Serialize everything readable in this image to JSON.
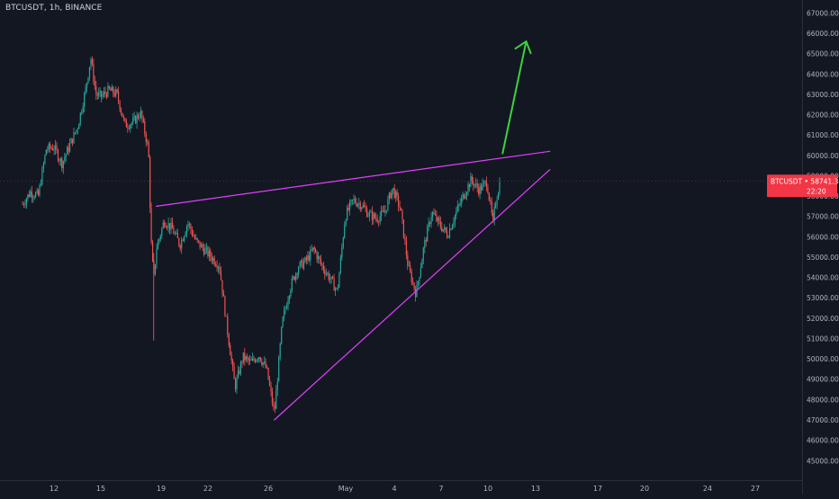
{
  "header": {
    "title": "BTCUSDT, 1h, BINANCE"
  },
  "colors": {
    "background": "#131722",
    "up": "#26a69a",
    "down": "#ef5350",
    "trendline": "#e040fb",
    "arrow": "#3bd43b",
    "price_label": "#f23645",
    "axis_text": "#b2b5be"
  },
  "chart_data": {
    "type": "candlestick",
    "symbol": "BTCUSDT",
    "interval": "1h",
    "exchange": "BINANCE",
    "grid": false,
    "y_axis_position": "right",
    "ylim": [
      45000,
      68000
    ],
    "y_ticks": [
      "45000.00",
      "46000.00",
      "47000.00",
      "48000.00",
      "49000.00",
      "50000.00",
      "51000.00",
      "52000.00",
      "53000.00",
      "54000.00",
      "55000.00",
      "56000.00",
      "57000.00",
      "58000.00",
      "59000.00",
      "60000.00",
      "61000.00",
      "62000.00",
      "63000.00",
      "64000.00",
      "65000.00",
      "66000.00",
      "67000.00"
    ],
    "x_ticks": [
      "12",
      "15",
      "19",
      "22",
      "26",
      "May",
      "4",
      "7",
      "10",
      "13",
      "17",
      "20",
      "24",
      "27"
    ],
    "last_price": {
      "value": "58741.34",
      "label": "BTCUSDT",
      "countdown": "22:20"
    },
    "price_path": [
      [
        "Apr 10 00:00",
        57600
      ],
      [
        "Apr 10 12:00",
        58200
      ],
      [
        "Apr 11 00:00",
        58000
      ],
      [
        "Apr 11 12:00",
        60300
      ],
      [
        "Apr 12 00:00",
        60400
      ],
      [
        "Apr 12 12:00",
        59600
      ],
      [
        "Apr 13 00:00",
        60500
      ],
      [
        "Apr 13 12:00",
        61400
      ],
      [
        "Apr 14 00:00",
        63200
      ],
      [
        "Apr 14 08:00",
        64800
      ],
      [
        "Apr 14 16:00",
        63000
      ],
      [
        "Apr 15 00:00",
        62900
      ],
      [
        "Apr 15 12:00",
        63200
      ],
      [
        "Apr 16 00:00",
        63000
      ],
      [
        "Apr 16 12:00",
        61500
      ],
      [
        "Apr 17 00:00",
        61600
      ],
      [
        "Apr 17 12:00",
        62100
      ],
      [
        "Apr 18 00:00",
        60300
      ],
      [
        "Apr 18 04:00",
        55800
      ],
      [
        "Apr 18 08:00",
        53800
      ],
      [
        "Apr 18 12:00",
        55400
      ],
      [
        "Apr 19 00:00",
        56800
      ],
      [
        "Apr 19 12:00",
        56400
      ],
      [
        "Apr 20 00:00",
        55600
      ],
      [
        "Apr 20 12:00",
        56700
      ],
      [
        "Apr 21 00:00",
        55800
      ],
      [
        "Apr 21 12:00",
        55400
      ],
      [
        "Apr 22 00:00",
        55000
      ],
      [
        "Apr 22 12:00",
        54600
      ],
      [
        "Apr 23 00:00",
        51500
      ],
      [
        "Apr 23 12:00",
        48600
      ],
      [
        "Apr 24 00:00",
        50100
      ],
      [
        "Apr 24 12:00",
        49800
      ],
      [
        "Apr 25 00:00",
        50200
      ],
      [
        "Apr 25 12:00",
        49500
      ],
      [
        "Apr 26 00:00",
        47300
      ],
      [
        "Apr 26 12:00",
        51800
      ],
      [
        "Apr 27 00:00",
        53500
      ],
      [
        "Apr 27 12:00",
        54500
      ],
      [
        "Apr 28 00:00",
        54800
      ],
      [
        "Apr 28 12:00",
        55400
      ],
      [
        "Apr 29 00:00",
        54600
      ],
      [
        "Apr 29 12:00",
        54000
      ],
      [
        "Apr 30 00:00",
        53300
      ],
      [
        "Apr 30 12:00",
        57000
      ],
      [
        "May 1 00:00",
        57800
      ],
      [
        "May 1 12:00",
        57600
      ],
      [
        "May 2 00:00",
        57100
      ],
      [
        "May 2 12:00",
        56900
      ],
      [
        "May 3 00:00",
        57200
      ],
      [
        "May 3 12:00",
        58400
      ],
      [
        "May 4 00:00",
        57400
      ],
      [
        "May 4 12:00",
        54500
      ],
      [
        "May 5 00:00",
        53200
      ],
      [
        "May 5 12:00",
        55500
      ],
      [
        "May 6 00:00",
        57200
      ],
      [
        "May 6 12:00",
        56600
      ],
      [
        "May 7 00:00",
        56100
      ],
      [
        "May 7 12:00",
        57100
      ],
      [
        "May 8 00:00",
        58000
      ],
      [
        "May 8 12:00",
        58800
      ],
      [
        "May 9 00:00",
        58300
      ],
      [
        "May 9 12:00",
        58700
      ],
      [
        "May 9 22:00",
        56500
      ],
      [
        "May 10 00:00",
        57500
      ],
      [
        "May 10 08:00",
        58700
      ]
    ],
    "annotations": {
      "upper_trendline": {
        "from": [
          "Apr 18 12:00",
          57500
        ],
        "to": [
          "May 13 12:00",
          60200
        ]
      },
      "lower_trendline": {
        "from": [
          "Apr 26 00:00",
          47000
        ],
        "to": [
          "May 13 12:00",
          59300
        ]
      },
      "arrow": {
        "from": [
          "May 10 12:00",
          60100
        ],
        "to": [
          "May 12 00:00",
          65600
        ],
        "direction": "up"
      }
    }
  }
}
